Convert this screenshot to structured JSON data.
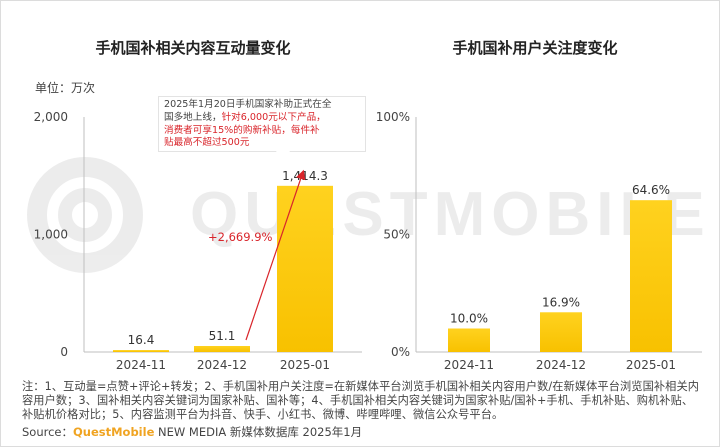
{
  "left_chart_title": "手机国补相关内容互动量变化",
  "right_chart_title": "手机国补用户关注度变化",
  "unit_label": "单位：万次",
  "growth_label": "+2,669.9%",
  "annotation": {
    "line1": "2025年1月20日手机国家补助正式在全",
    "line2a": "国多地上线，",
    "line2b": "针对6,000元以下产品，",
    "line3": "消费者可享15%的购新补贴，每件补",
    "line4": "贴最高不超过500元"
  },
  "footnote": "注：1、互动量=点赞+评论+转发；2、手机国补用户关注度=在新媒体平台浏览手机国补相关内容用户数/在新媒体平台浏览国补相关内容用户数；3、国补相关内容关键词为国家补贴、国补等；4、手机国补相关内容关键词为国家补贴/国补+手机、手机补贴、购机补贴、补贴机价格对比；5、内容监测平台为抖音、快手、小红书、微博、哔哩哔哩、微信公众号平台。",
  "source": {
    "prefix": "Source：",
    "brand": "QuestMobile",
    "suffix": " NEW MEDIA 新媒体数据库 2025年1月"
  },
  "watermark": "QUESTMOBILE",
  "colors": {
    "bar_top": "#ffd21f",
    "bar_bottom": "#f8c100",
    "arrow": "#d9252b",
    "axis": "#bfbfbf"
  },
  "chart_data": [
    {
      "type": "bar",
      "title": "手机国补相关内容互动量变化",
      "ylabel": "单位：万次",
      "categories": [
        "2024-11",
        "2024-12",
        "2025-01"
      ],
      "values": [
        16.4,
        51.1,
        1414.3
      ],
      "value_labels": [
        "16.4",
        "51.1",
        "1,414.3"
      ],
      "ylim": [
        0,
        2000
      ],
      "yticks": [
        0,
        1000,
        2000
      ],
      "ytick_labels": [
        "0",
        "1,000",
        "2,000"
      ],
      "grid": false
    },
    {
      "type": "bar",
      "title": "手机国补用户关注度变化",
      "categories": [
        "2024-11",
        "2024-12",
        "2025-01"
      ],
      "values": [
        10.0,
        16.9,
        64.6
      ],
      "value_labels": [
        "10.0%",
        "16.9%",
        "64.6%"
      ],
      "ylim": [
        0,
        100
      ],
      "yticks": [
        0,
        50,
        100
      ],
      "ytick_labels": [
        "0%",
        "50%",
        "100%"
      ],
      "grid": false
    }
  ]
}
